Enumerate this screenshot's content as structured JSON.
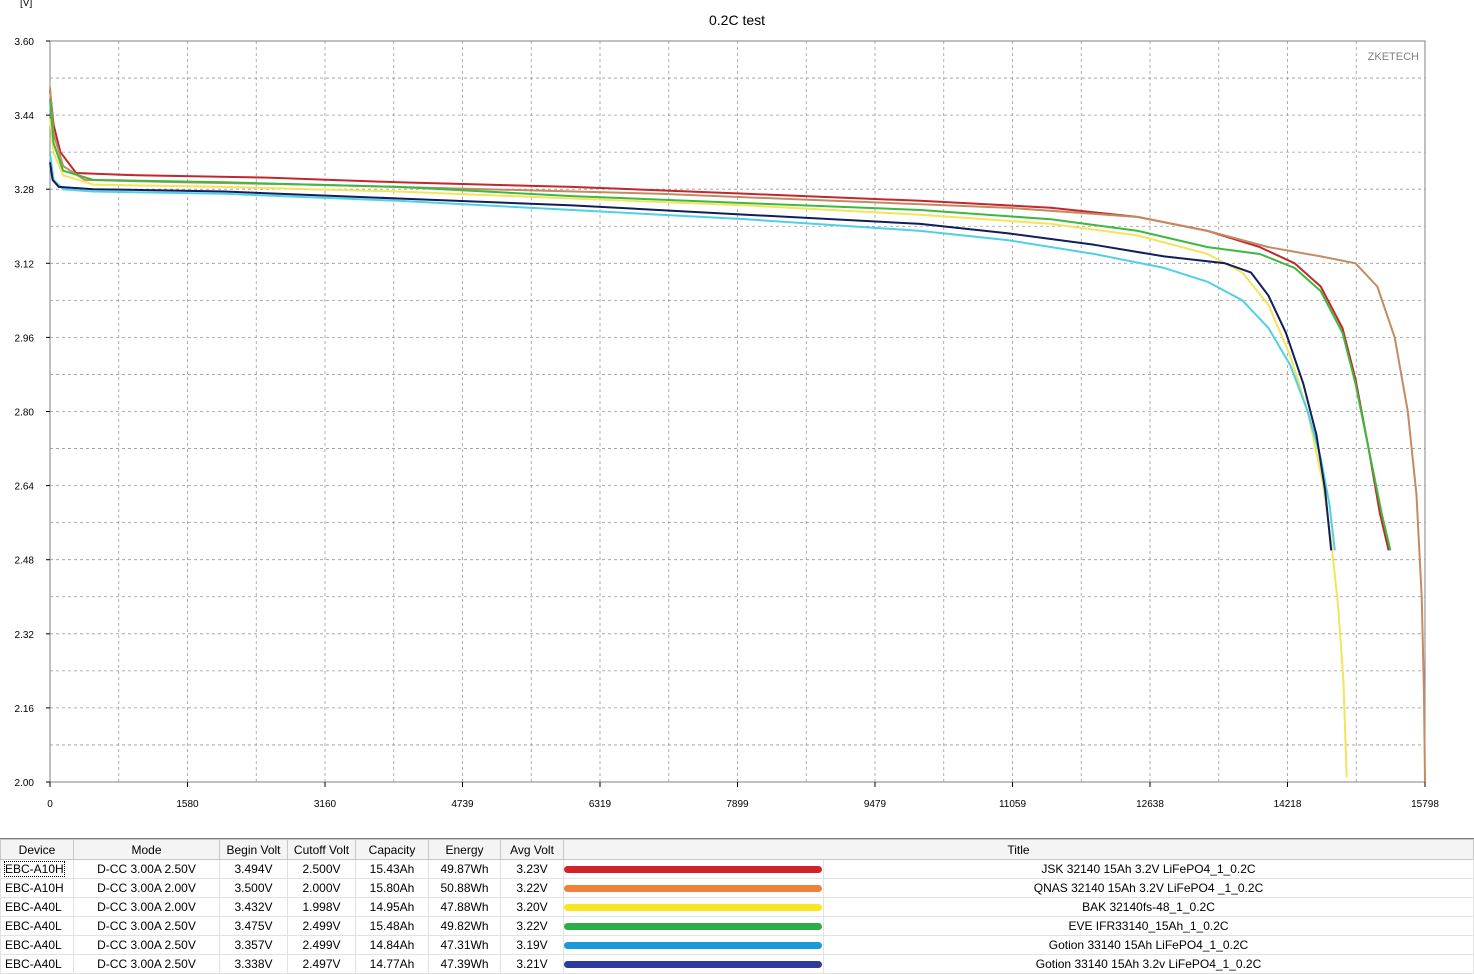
{
  "chart_data": {
    "type": "line",
    "title": "0.2C test",
    "unit_label": "[V]",
    "watermark": "ZKETECH",
    "xlim": [
      0,
      15798
    ],
    "ylim": [
      2.0,
      3.6
    ],
    "x_ticks": [
      "0",
      "1580",
      "3160",
      "4739",
      "6319",
      "7899",
      "9479",
      "11059",
      "12638",
      "14218",
      "15798"
    ],
    "y_ticks": [
      "3.60",
      "3.44",
      "3.28",
      "3.12",
      "2.96",
      "2.80",
      "2.64",
      "2.48",
      "2.32",
      "2.16",
      "2.00"
    ],
    "grid": true,
    "legend": "table-bottom",
    "series": [
      {
        "name": "JSK 32140 15Ah 3.2V LiFePO4_1_0.2C",
        "color": "#c1272d",
        "points": [
          [
            0,
            3.494
          ],
          [
            40,
            3.42
          ],
          [
            120,
            3.36
          ],
          [
            300,
            3.315
          ],
          [
            1000,
            3.31
          ],
          [
            2500,
            3.305
          ],
          [
            4000,
            3.295
          ],
          [
            6000,
            3.285
          ],
          [
            8000,
            3.27
          ],
          [
            10000,
            3.255
          ],
          [
            11500,
            3.24
          ],
          [
            12500,
            3.22
          ],
          [
            13300,
            3.19
          ],
          [
            13900,
            3.155
          ],
          [
            14300,
            3.12
          ],
          [
            14600,
            3.07
          ],
          [
            14850,
            2.98
          ],
          [
            15000,
            2.87
          ],
          [
            15150,
            2.72
          ],
          [
            15280,
            2.58
          ],
          [
            15380,
            2.5
          ]
        ]
      },
      {
        "name": "QNAS 32140 15Ah 3.2V LiFePO4 _1_0.2C",
        "color": "#c48b62",
        "points": [
          [
            0,
            3.5
          ],
          [
            40,
            3.4
          ],
          [
            150,
            3.33
          ],
          [
            400,
            3.3
          ],
          [
            1500,
            3.295
          ],
          [
            3000,
            3.29
          ],
          [
            5000,
            3.28
          ],
          [
            7000,
            3.27
          ],
          [
            9000,
            3.255
          ],
          [
            11000,
            3.24
          ],
          [
            12500,
            3.22
          ],
          [
            13300,
            3.19
          ],
          [
            14000,
            3.155
          ],
          [
            14600,
            3.135
          ],
          [
            15000,
            3.12
          ],
          [
            15250,
            3.07
          ],
          [
            15450,
            2.96
          ],
          [
            15600,
            2.8
          ],
          [
            15700,
            2.62
          ],
          [
            15760,
            2.4
          ],
          [
            15785,
            2.2
          ],
          [
            15798,
            2.0
          ]
        ]
      },
      {
        "name": "BAK 32140fs-48_1_0.2C",
        "color": "#f3e45c",
        "points": [
          [
            0,
            3.432
          ],
          [
            40,
            3.36
          ],
          [
            150,
            3.31
          ],
          [
            500,
            3.29
          ],
          [
            2000,
            3.285
          ],
          [
            4000,
            3.275
          ],
          [
            6000,
            3.26
          ],
          [
            8000,
            3.245
          ],
          [
            10000,
            3.225
          ],
          [
            11500,
            3.205
          ],
          [
            12500,
            3.18
          ],
          [
            13300,
            3.14
          ],
          [
            13700,
            3.1
          ],
          [
            14000,
            3.03
          ],
          [
            14250,
            2.92
          ],
          [
            14450,
            2.8
          ],
          [
            14620,
            2.65
          ],
          [
            14720,
            2.52
          ],
          [
            14800,
            2.38
          ],
          [
            14860,
            2.22
          ],
          [
            14898,
            2.01
          ]
        ]
      },
      {
        "name": "EVE IFR33140_15Ah_1_0.2C",
        "color": "#3db840",
        "points": [
          [
            0,
            3.475
          ],
          [
            40,
            3.38
          ],
          [
            150,
            3.32
          ],
          [
            500,
            3.3
          ],
          [
            2000,
            3.295
          ],
          [
            4000,
            3.285
          ],
          [
            6000,
            3.265
          ],
          [
            8000,
            3.25
          ],
          [
            10000,
            3.235
          ],
          [
            11500,
            3.215
          ],
          [
            12500,
            3.19
          ],
          [
            13300,
            3.155
          ],
          [
            13900,
            3.14
          ],
          [
            14300,
            3.11
          ],
          [
            14600,
            3.06
          ],
          [
            14850,
            2.97
          ],
          [
            15000,
            2.86
          ],
          [
            15150,
            2.72
          ],
          [
            15300,
            2.58
          ],
          [
            15400,
            2.5
          ]
        ]
      },
      {
        "name": "Gotion 33140 15Ah LiFePO4_1_0.2C",
        "color": "#4fd0e6",
        "points": [
          [
            0,
            3.357
          ],
          [
            40,
            3.3
          ],
          [
            150,
            3.28
          ],
          [
            500,
            3.275
          ],
          [
            2000,
            3.27
          ],
          [
            4000,
            3.255
          ],
          [
            6000,
            3.235
          ],
          [
            8000,
            3.215
          ],
          [
            10000,
            3.19
          ],
          [
            11000,
            3.17
          ],
          [
            12000,
            3.14
          ],
          [
            12800,
            3.11
          ],
          [
            13300,
            3.08
          ],
          [
            13700,
            3.04
          ],
          [
            14000,
            2.98
          ],
          [
            14250,
            2.9
          ],
          [
            14450,
            2.8
          ],
          [
            14600,
            2.7
          ],
          [
            14700,
            2.6
          ],
          [
            14762,
            2.5
          ]
        ]
      },
      {
        "name": "Gotion 33140 15Ah 3.2v LiFePO4_1_0.2C",
        "color": "#101e5c",
        "points": [
          [
            0,
            3.338
          ],
          [
            30,
            3.3
          ],
          [
            100,
            3.285
          ],
          [
            500,
            3.28
          ],
          [
            2000,
            3.275
          ],
          [
            4000,
            3.26
          ],
          [
            6000,
            3.245
          ],
          [
            8000,
            3.225
          ],
          [
            10000,
            3.205
          ],
          [
            11000,
            3.185
          ],
          [
            12000,
            3.16
          ],
          [
            12800,
            3.135
          ],
          [
            13500,
            3.12
          ],
          [
            13800,
            3.1
          ],
          [
            14000,
            3.05
          ],
          [
            14200,
            2.97
          ],
          [
            14400,
            2.86
          ],
          [
            14550,
            2.75
          ],
          [
            14650,
            2.63
          ],
          [
            14720,
            2.5
          ]
        ]
      }
    ]
  },
  "table": {
    "headers": [
      "Device",
      "Mode",
      "Begin Volt",
      "Cutoff Volt",
      "Capacity",
      "Energy",
      "Avg Volt",
      "Title"
    ],
    "rows": [
      {
        "device": "EBC-A10H",
        "mode": "D-CC  3.00A  2.50V",
        "begin": "3.494V",
        "cutoff": "2.500V",
        "capacity": "15.43Ah",
        "energy": "49.87Wh",
        "avg": "3.23V",
        "color": "#d2232a",
        "title": "JSK 32140 15Ah 3.2V LiFePO4_1_0.2C"
      },
      {
        "device": "EBC-A10H",
        "mode": "D-CC  3.00A  2.00V",
        "begin": "3.500V",
        "cutoff": "2.000V",
        "capacity": "15.80Ah",
        "energy": "50.88Wh",
        "avg": "3.22V",
        "color": "#f0803a",
        "title": "QNAS 32140 15Ah 3.2V LiFePO4 _1_0.2C"
      },
      {
        "device": "EBC-A40L",
        "mode": "D-CC  3.00A  2.00V",
        "begin": "3.432V",
        "cutoff": "1.998V",
        "capacity": "14.95Ah",
        "energy": "47.88Wh",
        "avg": "3.20V",
        "color": "#f7e620",
        "title": "BAK 32140fs-48_1_0.2C"
      },
      {
        "device": "EBC-A40L",
        "mode": "D-CC  3.00A  2.50V",
        "begin": "3.475V",
        "cutoff": "2.499V",
        "capacity": "15.48Ah",
        "energy": "49.82Wh",
        "avg": "3.22V",
        "color": "#2bae48",
        "title": "EVE IFR33140_15Ah_1_0.2C"
      },
      {
        "device": "EBC-A40L",
        "mode": "D-CC  3.00A  2.50V",
        "begin": "3.357V",
        "cutoff": "2.499V",
        "capacity": "14.84Ah",
        "energy": "47.31Wh",
        "avg": "3.19V",
        "color": "#1a9ad8",
        "title": "Gotion 33140 15Ah LiFePO4_1_0.2C"
      },
      {
        "device": "EBC-A40L",
        "mode": "D-CC  3.00A  2.50V",
        "begin": "3.338V",
        "cutoff": "2.497V",
        "capacity": "14.77Ah",
        "energy": "47.39Wh",
        "avg": "3.21V",
        "color": "#2d3b9e",
        "title": "Gotion 33140 15Ah 3.2v LiFePO4_1_0.2C"
      }
    ]
  }
}
